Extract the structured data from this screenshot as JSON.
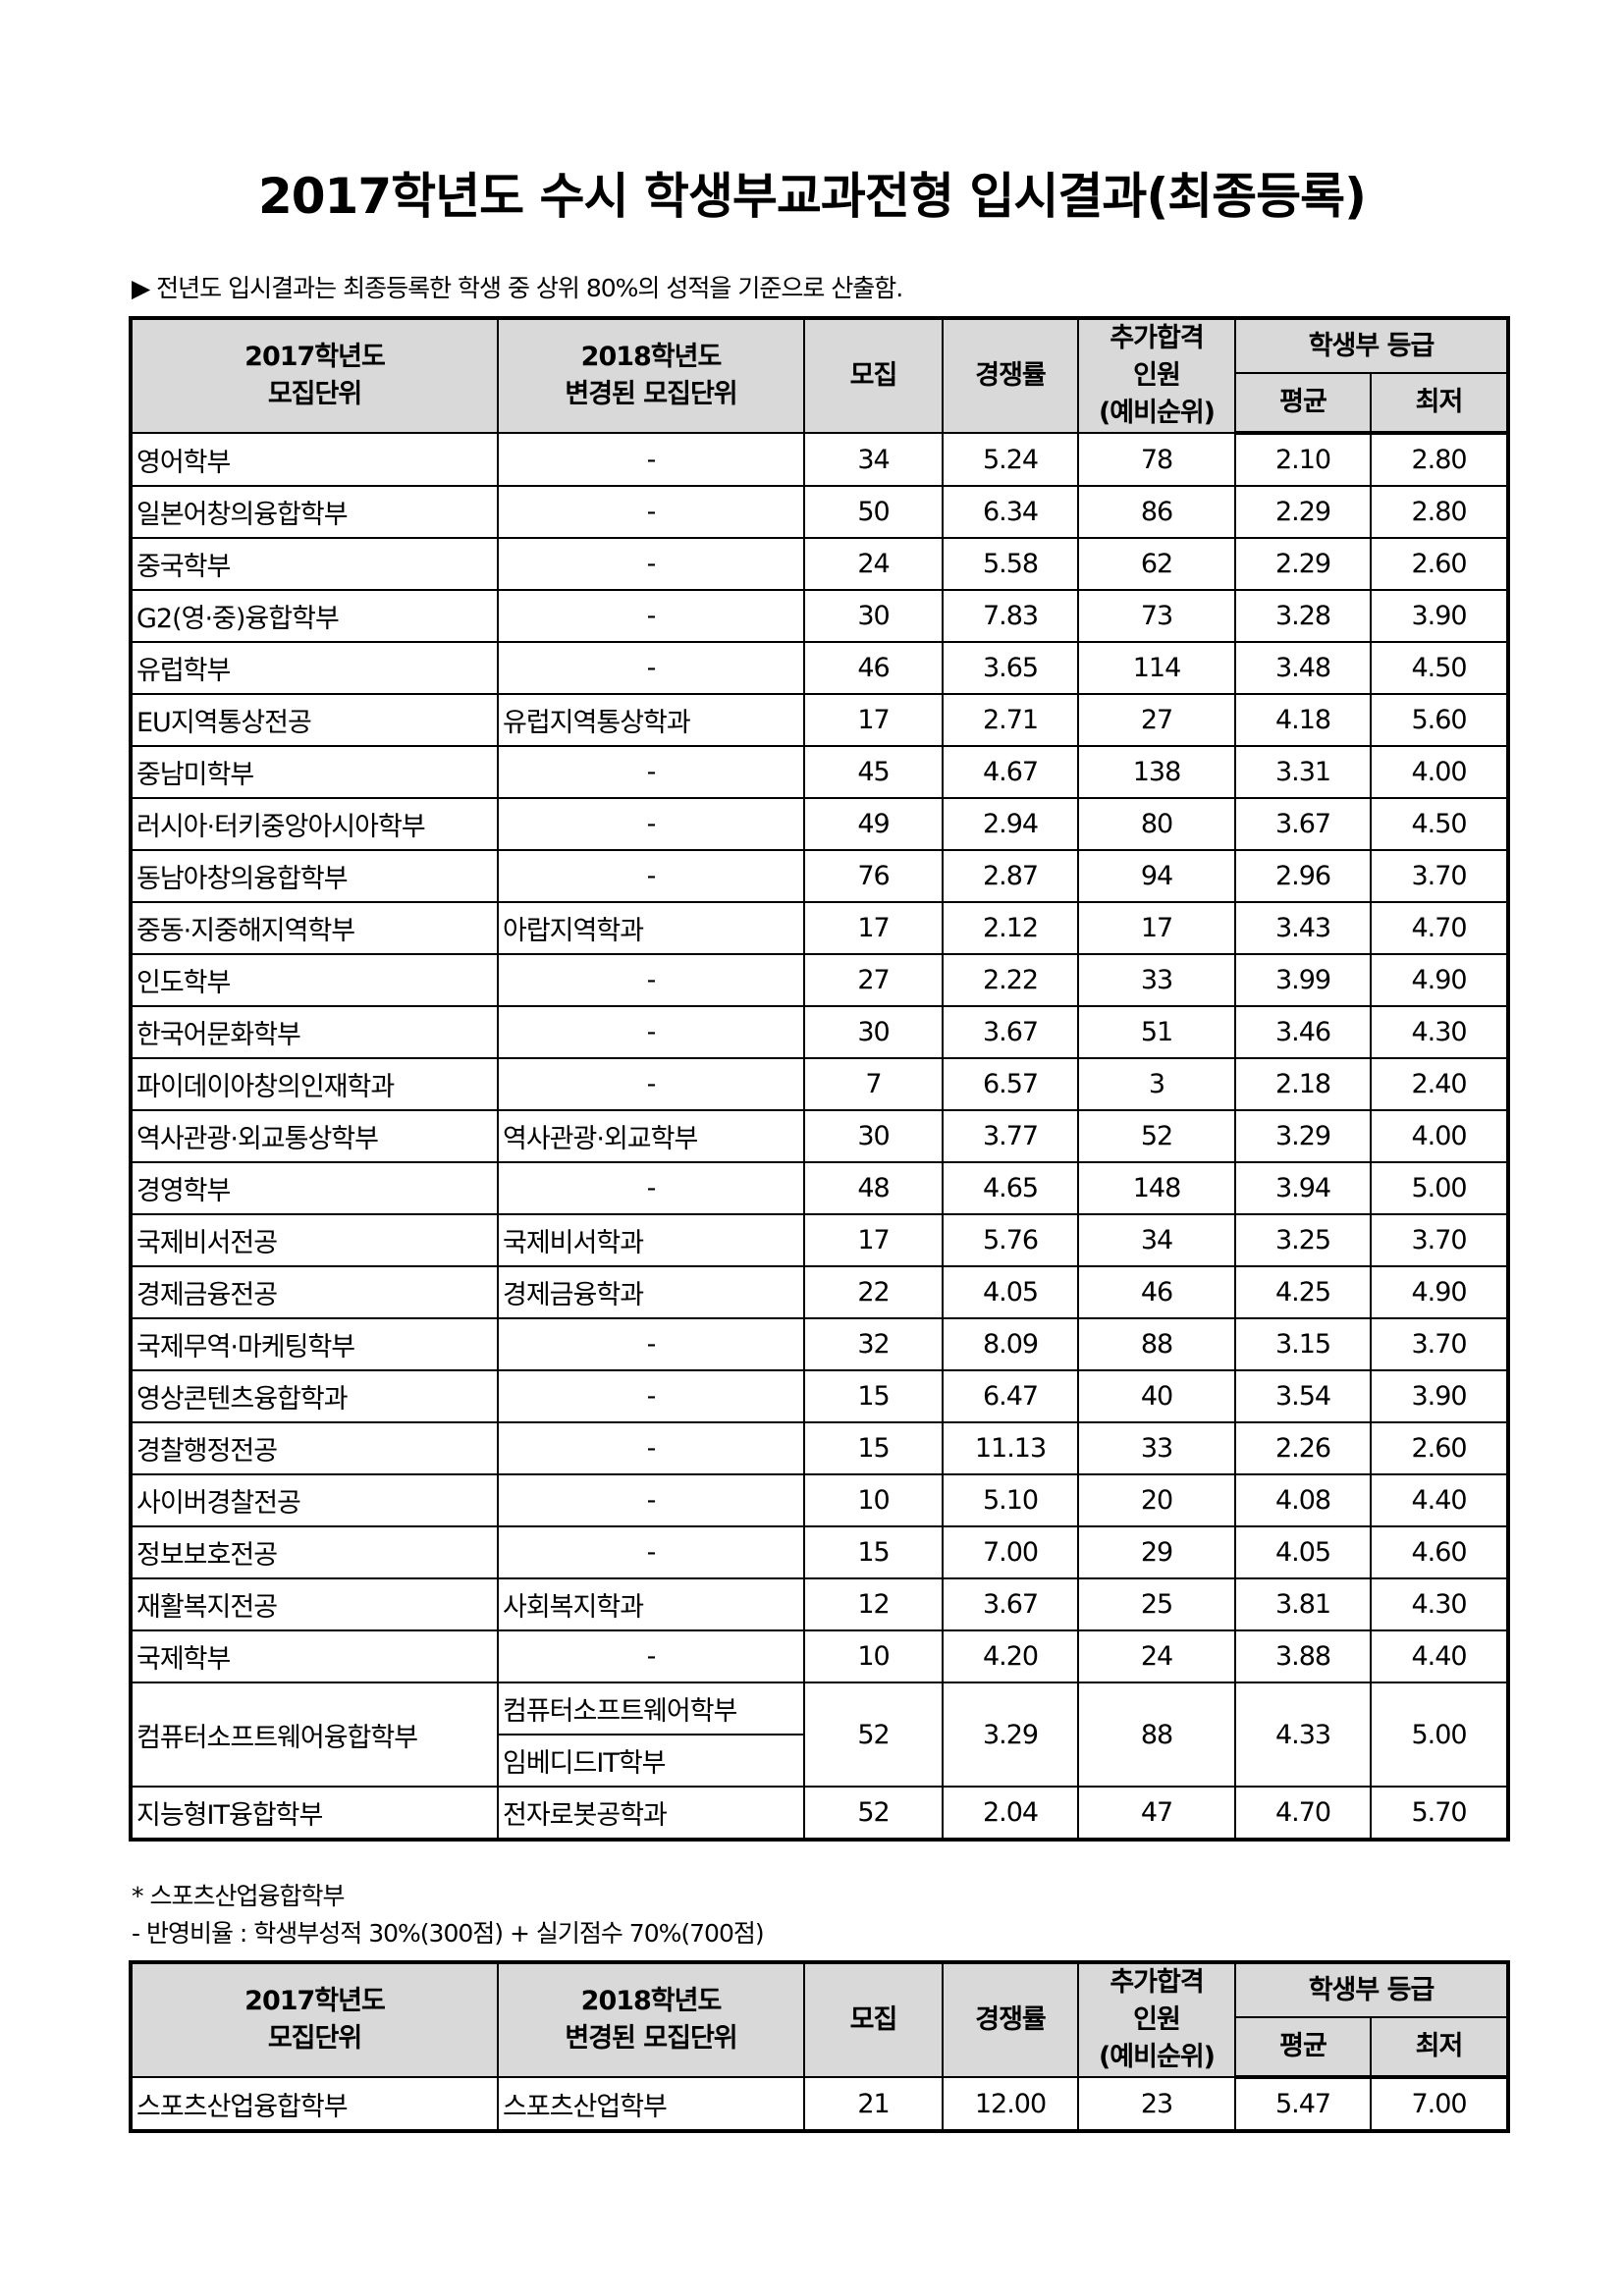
{
  "title": "2017학년도 수시 학생부교과전형 입시결과(최종등록)",
  "note": "▶ 전년도 입시결과는 최종등록한 학생 중 상위 80%의 성적을 기준으로 산출함.",
  "headers": {
    "unit2017_line1": "2017학년도",
    "unit2017_line2": "모집단위",
    "unit2018_line1": "2018학년도",
    "unit2018_line2": "변경된 모집단위",
    "recruit": "모집",
    "competition": "경쟁률",
    "extra_line1": "추가합격",
    "extra_line2": "인원",
    "extra_line3": "(예비순위)",
    "grade": "학생부 등급",
    "avg": "평균",
    "min": "최저"
  },
  "rows": [
    {
      "unit2017": "영어학부",
      "unit2018": [
        "-"
      ],
      "recruit": "34",
      "competition": "5.24",
      "extra": "78",
      "avg": "2.10",
      "min": "2.80"
    },
    {
      "unit2017": "일본어창의융합학부",
      "unit2018": [
        "-"
      ],
      "recruit": "50",
      "competition": "6.34",
      "extra": "86",
      "avg": "2.29",
      "min": "2.80"
    },
    {
      "unit2017": "중국학부",
      "unit2018": [
        "-"
      ],
      "recruit": "24",
      "competition": "5.58",
      "extra": "62",
      "avg": "2.29",
      "min": "2.60"
    },
    {
      "unit2017": "G2(영·중)융합학부",
      "unit2018": [
        "-"
      ],
      "recruit": "30",
      "competition": "7.83",
      "extra": "73",
      "avg": "3.28",
      "min": "3.90"
    },
    {
      "unit2017": "유럽학부",
      "unit2018": [
        "-"
      ],
      "recruit": "46",
      "competition": "3.65",
      "extra": "114",
      "avg": "3.48",
      "min": "4.50"
    },
    {
      "unit2017": "EU지역통상전공",
      "unit2018": [
        "유럽지역통상학과"
      ],
      "recruit": "17",
      "competition": "2.71",
      "extra": "27",
      "avg": "4.18",
      "min": "5.60"
    },
    {
      "unit2017": "중남미학부",
      "unit2018": [
        "-"
      ],
      "recruit": "45",
      "competition": "4.67",
      "extra": "138",
      "avg": "3.31",
      "min": "4.00"
    },
    {
      "unit2017": "러시아·터키중앙아시아학부",
      "unit2018": [
        "-"
      ],
      "recruit": "49",
      "competition": "2.94",
      "extra": "80",
      "avg": "3.67",
      "min": "4.50"
    },
    {
      "unit2017": "동남아창의융합학부",
      "unit2018": [
        "-"
      ],
      "recruit": "76",
      "competition": "2.87",
      "extra": "94",
      "avg": "2.96",
      "min": "3.70"
    },
    {
      "unit2017": "중동·지중해지역학부",
      "unit2018": [
        "아랍지역학과"
      ],
      "recruit": "17",
      "competition": "2.12",
      "extra": "17",
      "avg": "3.43",
      "min": "4.70"
    },
    {
      "unit2017": "인도학부",
      "unit2018": [
        "-"
      ],
      "recruit": "27",
      "competition": "2.22",
      "extra": "33",
      "avg": "3.99",
      "min": "4.90"
    },
    {
      "unit2017": "한국어문화학부",
      "unit2018": [
        "-"
      ],
      "recruit": "30",
      "competition": "3.67",
      "extra": "51",
      "avg": "3.46",
      "min": "4.30"
    },
    {
      "unit2017": "파이데이아창의인재학과",
      "unit2018": [
        "-"
      ],
      "recruit": "7",
      "competition": "6.57",
      "extra": "3",
      "avg": "2.18",
      "min": "2.40"
    },
    {
      "unit2017": "역사관광·외교통상학부",
      "unit2018": [
        "역사관광·외교학부"
      ],
      "recruit": "30",
      "competition": "3.77",
      "extra": "52",
      "avg": "3.29",
      "min": "4.00"
    },
    {
      "unit2017": "경영학부",
      "unit2018": [
        "-"
      ],
      "recruit": "48",
      "competition": "4.65",
      "extra": "148",
      "avg": "3.94",
      "min": "5.00"
    },
    {
      "unit2017": "국제비서전공",
      "unit2018": [
        "국제비서학과"
      ],
      "recruit": "17",
      "competition": "5.76",
      "extra": "34",
      "avg": "3.25",
      "min": "3.70"
    },
    {
      "unit2017": "경제금융전공",
      "unit2018": [
        "경제금융학과"
      ],
      "recruit": "22",
      "competition": "4.05",
      "extra": "46",
      "avg": "4.25",
      "min": "4.90"
    },
    {
      "unit2017": "국제무역·마케팅학부",
      "unit2018": [
        "-"
      ],
      "recruit": "32",
      "competition": "8.09",
      "extra": "88",
      "avg": "3.15",
      "min": "3.70"
    },
    {
      "unit2017": "영상콘텐츠융합학과",
      "unit2018": [
        "-"
      ],
      "recruit": "15",
      "competition": "6.47",
      "extra": "40",
      "avg": "3.54",
      "min": "3.90"
    },
    {
      "unit2017": "경찰행정전공",
      "unit2018": [
        "-"
      ],
      "recruit": "15",
      "competition": "11.13",
      "extra": "33",
      "avg": "2.26",
      "min": "2.60"
    },
    {
      "unit2017": "사이버경찰전공",
      "unit2018": [
        "-"
      ],
      "recruit": "10",
      "competition": "5.10",
      "extra": "20",
      "avg": "4.08",
      "min": "4.40"
    },
    {
      "unit2017": "정보보호전공",
      "unit2018": [
        "-"
      ],
      "recruit": "15",
      "competition": "7.00",
      "extra": "29",
      "avg": "4.05",
      "min": "4.60"
    },
    {
      "unit2017": "재활복지전공",
      "unit2018": [
        "사회복지학과"
      ],
      "recruit": "12",
      "competition": "3.67",
      "extra": "25",
      "avg": "3.81",
      "min": "4.30"
    },
    {
      "unit2017": "국제학부",
      "unit2018": [
        "-"
      ],
      "recruit": "10",
      "competition": "4.20",
      "extra": "24",
      "avg": "3.88",
      "min": "4.40"
    },
    {
      "unit2017": "컴퓨터소프트웨어융합학부",
      "unit2018": [
        "컴퓨터소프트웨어학부",
        "임베디드IT학부"
      ],
      "recruit": "52",
      "competition": "3.29",
      "extra": "88",
      "avg": "4.33",
      "min": "5.00"
    },
    {
      "unit2017": "지능형IT융합학부",
      "unit2018": [
        "전자로봇공학과"
      ],
      "recruit": "52",
      "competition": "2.04",
      "extra": "47",
      "avg": "4.70",
      "min": "5.70"
    }
  ],
  "sports": {
    "note1": "* 스포츠산업융합학부",
    "note2": "- 반영비율 : 학생부성적 30%(300점) + 실기점수 70%(700점)",
    "rows": [
      {
        "unit2017": "스포츠산업융합학부",
        "unit2018": [
          "스포츠산업학부"
        ],
        "recruit": "21",
        "competition": "12.00",
        "extra": "23",
        "avg": "5.47",
        "min": "7.00"
      }
    ]
  }
}
